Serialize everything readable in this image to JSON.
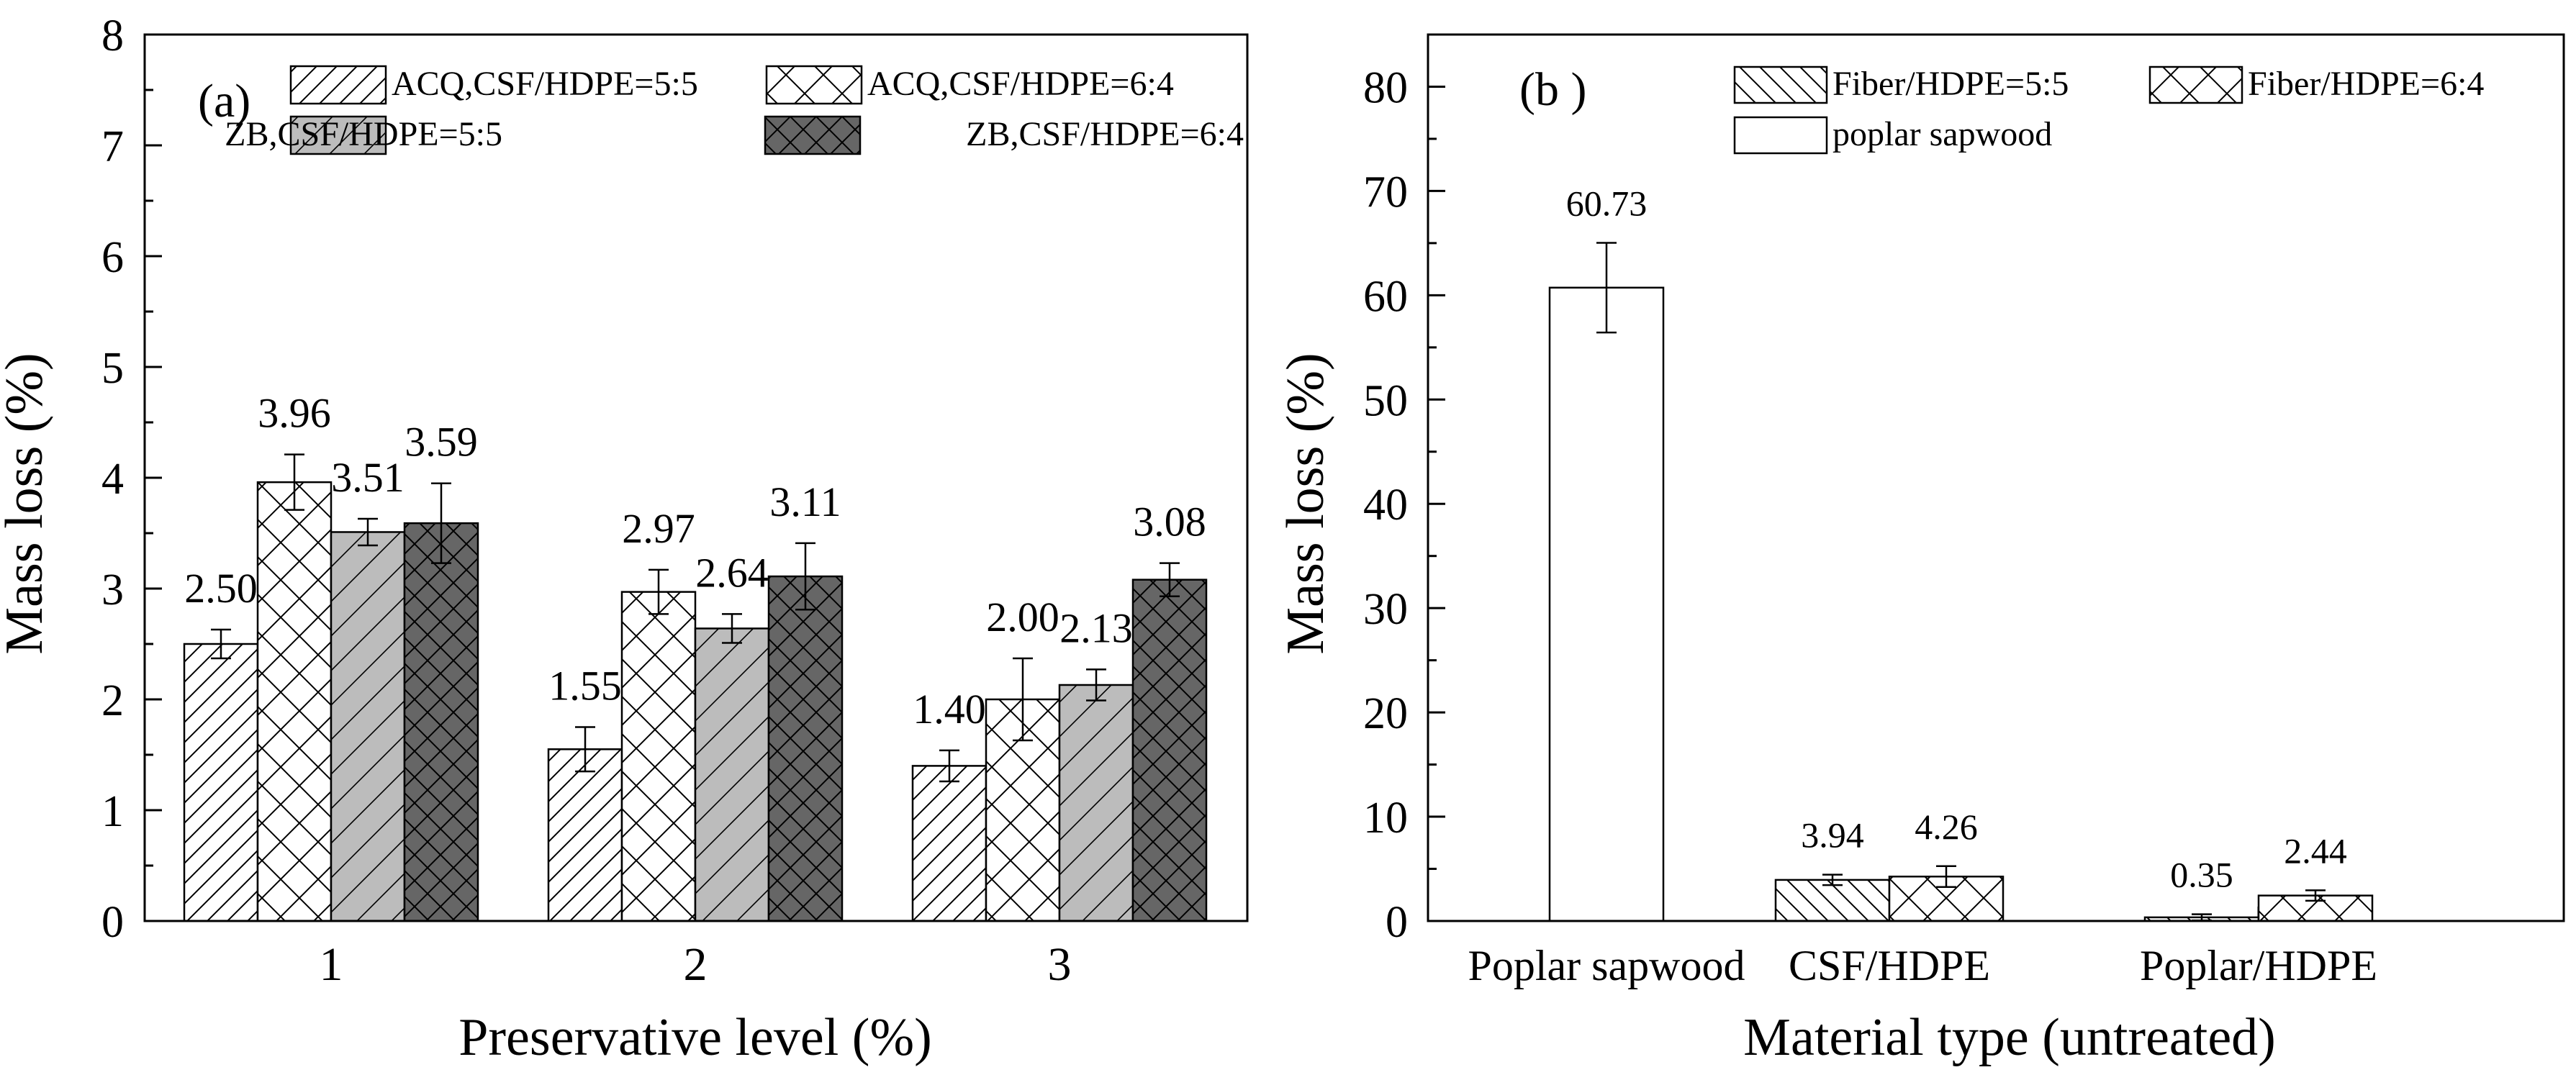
{
  "chart_data": [
    {
      "type": "bar",
      "panel_label": "(a)",
      "xlabel": "Preservative level (%)",
      "ylabel": "Mass loss (%)",
      "ylim": [
        0,
        8
      ],
      "yticks": [
        "0",
        "1",
        "2",
        "3",
        "4",
        "5",
        "6",
        "7",
        "8"
      ],
      "categories": [
        "1",
        "2",
        "3"
      ],
      "legend_position": "top-right",
      "series": [
        {
          "name": "ACQ,CSF/HDPE=5:5",
          "pattern": "diag-right",
          "values": [
            2.5,
            1.55,
            1.4
          ],
          "errors": [
            0.13,
            0.2,
            0.14
          ],
          "labels": [
            "2.50",
            "1.55",
            "1.40"
          ]
        },
        {
          "name": "ACQ,CSF/HDPE=6:4",
          "pattern": "crosshatch",
          "values": [
            3.96,
            2.97,
            2.0
          ],
          "errors": [
            0.25,
            0.2,
            0.37
          ],
          "labels": [
            "3.96",
            "2.97",
            "2.00"
          ]
        },
        {
          "name": "ZB,CSF/HDPE=5:5",
          "pattern": "gray-diag",
          "values": [
            3.51,
            2.64,
            2.13
          ],
          "errors": [
            0.12,
            0.13,
            0.14
          ],
          "labels": [
            "3.51",
            "2.64",
            "2.13"
          ]
        },
        {
          "name": "ZB,CSF/HDPE=6:4",
          "pattern": "dark-cross",
          "values": [
            3.59,
            3.11,
            3.08
          ],
          "errors": [
            0.36,
            0.3,
            0.15
          ],
          "labels": [
            "3.59",
            "3.11",
            "3.08"
          ]
        }
      ]
    },
    {
      "type": "bar",
      "panel_label": "(b )",
      "xlabel": "Material type (untreated)",
      "ylabel": "Mass loss (%)",
      "ylim": [
        0,
        85
      ],
      "yticks": [
        "0",
        "10",
        "20",
        "30",
        "40",
        "50",
        "60",
        "70",
        "80"
      ],
      "categories": [
        "Poplar sapwood",
        "CSF/HDPE",
        "Poplar/HDPE"
      ],
      "legend_position": "top-right",
      "series": [
        {
          "name": "Fiber/HDPE=5:5",
          "pattern": "diag-left",
          "values": [
            null,
            3.94,
            0.35
          ],
          "errors": [
            null,
            0.5,
            0.3
          ],
          "labels": [
            null,
            "3.94",
            "0.35"
          ]
        },
        {
          "name": "Fiber/HDPE=6:4",
          "pattern": "crosshatch",
          "values": [
            null,
            4.26,
            2.44
          ],
          "errors": [
            null,
            1.0,
            0.5
          ],
          "labels": [
            null,
            "4.26",
            "2.44"
          ]
        },
        {
          "name": "poplar sapwood",
          "pattern": "none",
          "values": [
            60.73,
            null,
            null
          ],
          "errors": [
            4.3,
            null,
            null
          ],
          "labels": [
            "60.73",
            null,
            null
          ]
        }
      ]
    }
  ]
}
